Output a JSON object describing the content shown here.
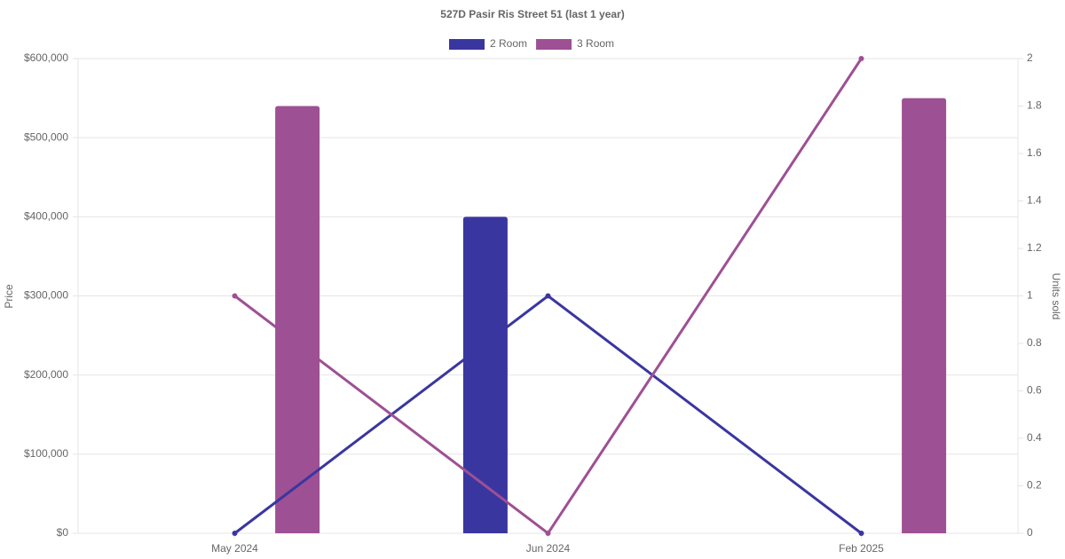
{
  "chart_data": {
    "type": "bar-line",
    "title": "527D Pasir Ris Street 51 (last 1 year)",
    "categories": [
      "May 2024",
      "Jun 2024",
      "Feb 2025"
    ],
    "y_label": "Price",
    "y2_label": "Units sold",
    "series": [
      {
        "name": "2 Room",
        "type": "bar",
        "color": "#3a36a0",
        "values": [
          null,
          400000,
          null
        ]
      },
      {
        "name": "3 Room",
        "type": "bar",
        "color": "#9e5094",
        "values": [
          540000,
          null,
          550000
        ]
      },
      {
        "name": "2 Room",
        "type": "line",
        "axis": "y2",
        "color": "#3a36a0",
        "values": [
          0,
          1,
          0
        ]
      },
      {
        "name": "3 Room",
        "type": "line",
        "axis": "y2",
        "color": "#9e5094",
        "values": [
          1,
          0,
          2
        ]
      }
    ],
    "ylim": [
      0,
      600000
    ],
    "yticks": [
      {
        "value": 0,
        "label": "$0"
      },
      {
        "value": 100000,
        "label": "$100,000"
      },
      {
        "value": 200000,
        "label": "$200,000"
      },
      {
        "value": 300000,
        "label": "$300,000"
      },
      {
        "value": 400000,
        "label": "$400,000"
      },
      {
        "value": 500000,
        "label": "$500,000"
      },
      {
        "value": 600000,
        "label": "$600,000"
      }
    ],
    "y2lim": [
      0,
      2
    ],
    "y2ticks": [
      0,
      0.2,
      0.4,
      0.6,
      0.8,
      1,
      1.2,
      1.4,
      1.6,
      1.8,
      2
    ],
    "grid": true,
    "legend": "top"
  }
}
